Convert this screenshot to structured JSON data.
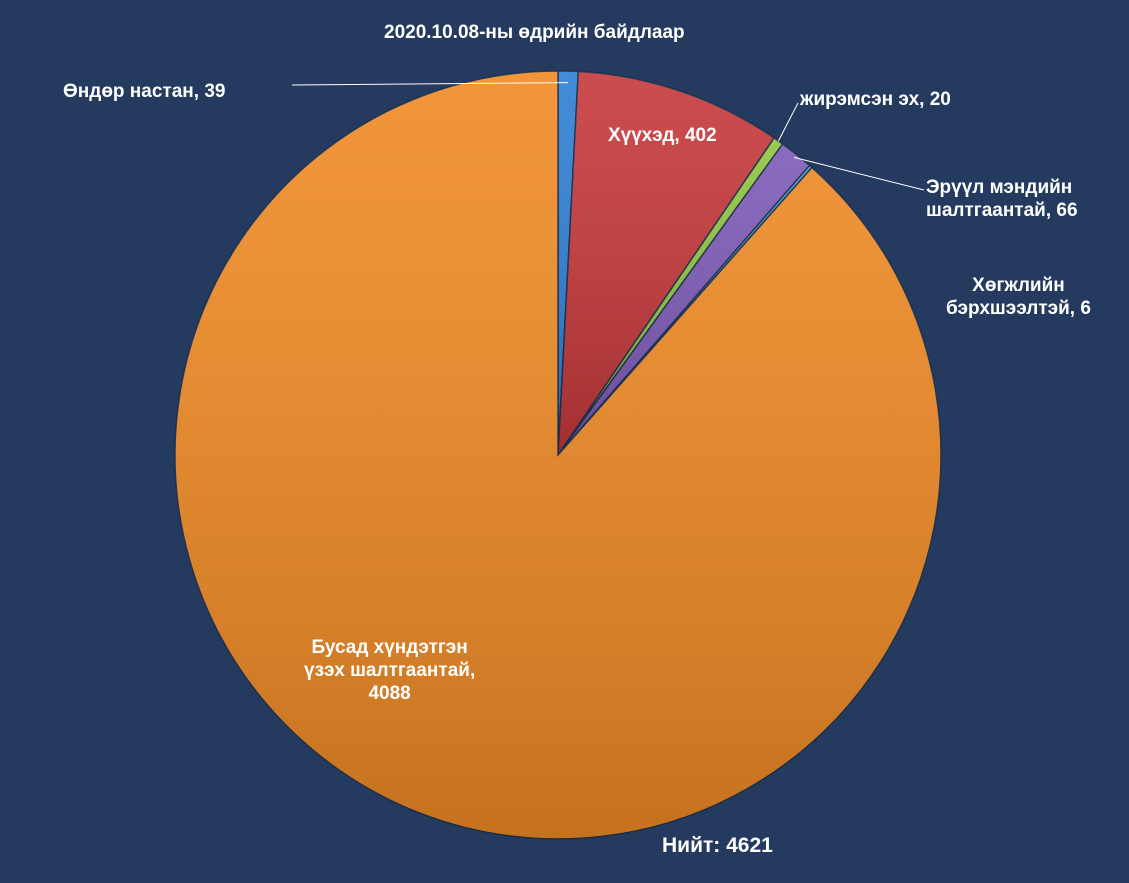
{
  "chart_data": {
    "type": "pie",
    "title": "2020.10.08-ны өдрийн байдлаар",
    "total_label": "Нийт:",
    "total_value": "4621",
    "slices": [
      {
        "label": "Өндөр настан, 39",
        "value": 39,
        "color": "#2f7fd4"
      },
      {
        "label": "Хүүхэд, 402",
        "value": 402,
        "color": "#c6383a"
      },
      {
        "label": "жирэмсэн эх, 20",
        "value": 20,
        "color": "#8fc43f"
      },
      {
        "label": "Эрүүл мэндийн\nшалтгаантай, 66",
        "value": 66,
        "color": "#7d5ab8"
      },
      {
        "label": "Хөгжлийн\nбэрхшээлтэй, 6",
        "value": 6,
        "color": "#3fa0c8"
      },
      {
        "label": "Бусад хүндэтгэн\nүзэх шалтгаантай,\n4088",
        "value": 4088,
        "color": "#f08a24"
      }
    ]
  }
}
